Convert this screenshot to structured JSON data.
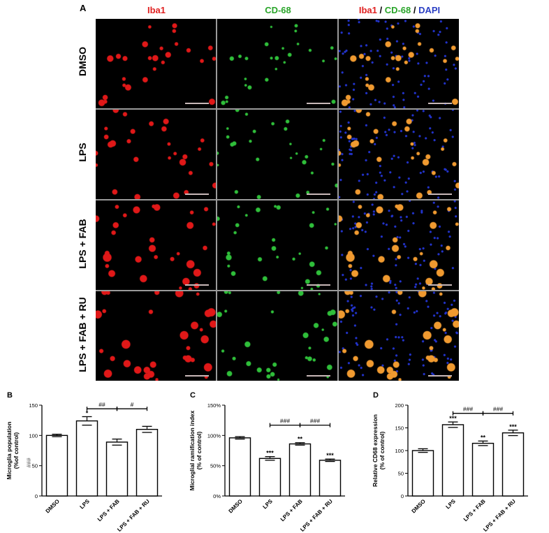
{
  "panel_a": {
    "letter": "A",
    "columns": [
      {
        "parts": [
          {
            "text": "Iba1",
            "color": "#e02020"
          }
        ]
      },
      {
        "parts": [
          {
            "text": "CD-68",
            "color": "#2aa52a"
          }
        ]
      },
      {
        "parts": [
          {
            "text": "Iba1",
            "color": "#e02020"
          },
          {
            "text": " / ",
            "color": "#000000"
          },
          {
            "text": "CD-68",
            "color": "#2aa52a"
          },
          {
            "text": " / ",
            "color": "#000000"
          },
          {
            "text": "DAPI",
            "color": "#2b3fc4"
          }
        ]
      }
    ],
    "rows": [
      "DMSO",
      "LPS",
      "LPS + FAB",
      "LPS + FAB + RU"
    ],
    "channel_colors": {
      "iba1": "#e01818",
      "cd68": "#2fbf3a",
      "dapi": "#2233cc",
      "merge": "#f09a30"
    }
  },
  "chart_data": [
    {
      "letter": "B",
      "type": "bar",
      "ylabel": "Microglia population\n(%of control)",
      "categories": [
        "DMSO",
        "LPS",
        "LPS + FAB",
        "LPS + FAB + RU"
      ],
      "values": [
        100,
        124,
        89,
        110
      ],
      "errors": [
        2,
        7,
        5,
        5
      ],
      "ylim": [
        0,
        150
      ],
      "yticks": [
        0,
        50,
        100,
        150
      ],
      "bar_marks": [
        "",
        "*",
        "",
        ""
      ],
      "brackets": [
        {
          "from": 1,
          "to": 2,
          "label": "##",
          "y": 144
        },
        {
          "from": 2,
          "to": 3,
          "label": "#",
          "y": 144
        }
      ],
      "overlay_text": "###"
    },
    {
      "letter": "C",
      "type": "bar",
      "ylabel": "Microglial ramification index\n(% of control)",
      "categories": [
        "DMSO",
        "LPS",
        "LPS + FAB",
        "LPS + FAB + RU"
      ],
      "values": [
        96,
        62,
        86,
        59
      ],
      "errors": [
        2,
        3,
        2,
        2
      ],
      "ylim": [
        0,
        150
      ],
      "yticks": [
        0,
        50,
        100,
        150
      ],
      "tick_suffix": "%",
      "bar_marks": [
        "",
        "***",
        "**",
        "***"
      ],
      "brackets": [
        {
          "from": 1,
          "to": 2,
          "label": "###",
          "y": 117
        },
        {
          "from": 2,
          "to": 3,
          "label": "###",
          "y": 117
        }
      ]
    },
    {
      "letter": "D",
      "type": "bar",
      "ylabel": "Relative CD68 expression\n(% of control)",
      "categories": [
        "DMSO",
        "LPS",
        "LPS + FAB",
        "LPS + FAB + RU"
      ],
      "values": [
        100,
        157,
        116,
        139
      ],
      "errors": [
        4,
        6,
        5,
        6
      ],
      "ylim": [
        0,
        200
      ],
      "yticks": [
        0,
        50,
        100,
        150,
        200
      ],
      "bar_marks": [
        "",
        "***",
        "**",
        "***"
      ],
      "brackets": [
        {
          "from": 1,
          "to": 2,
          "label": "###",
          "y": 182
        },
        {
          "from": 2,
          "to": 3,
          "label": "###",
          "y": 182
        }
      ]
    }
  ]
}
